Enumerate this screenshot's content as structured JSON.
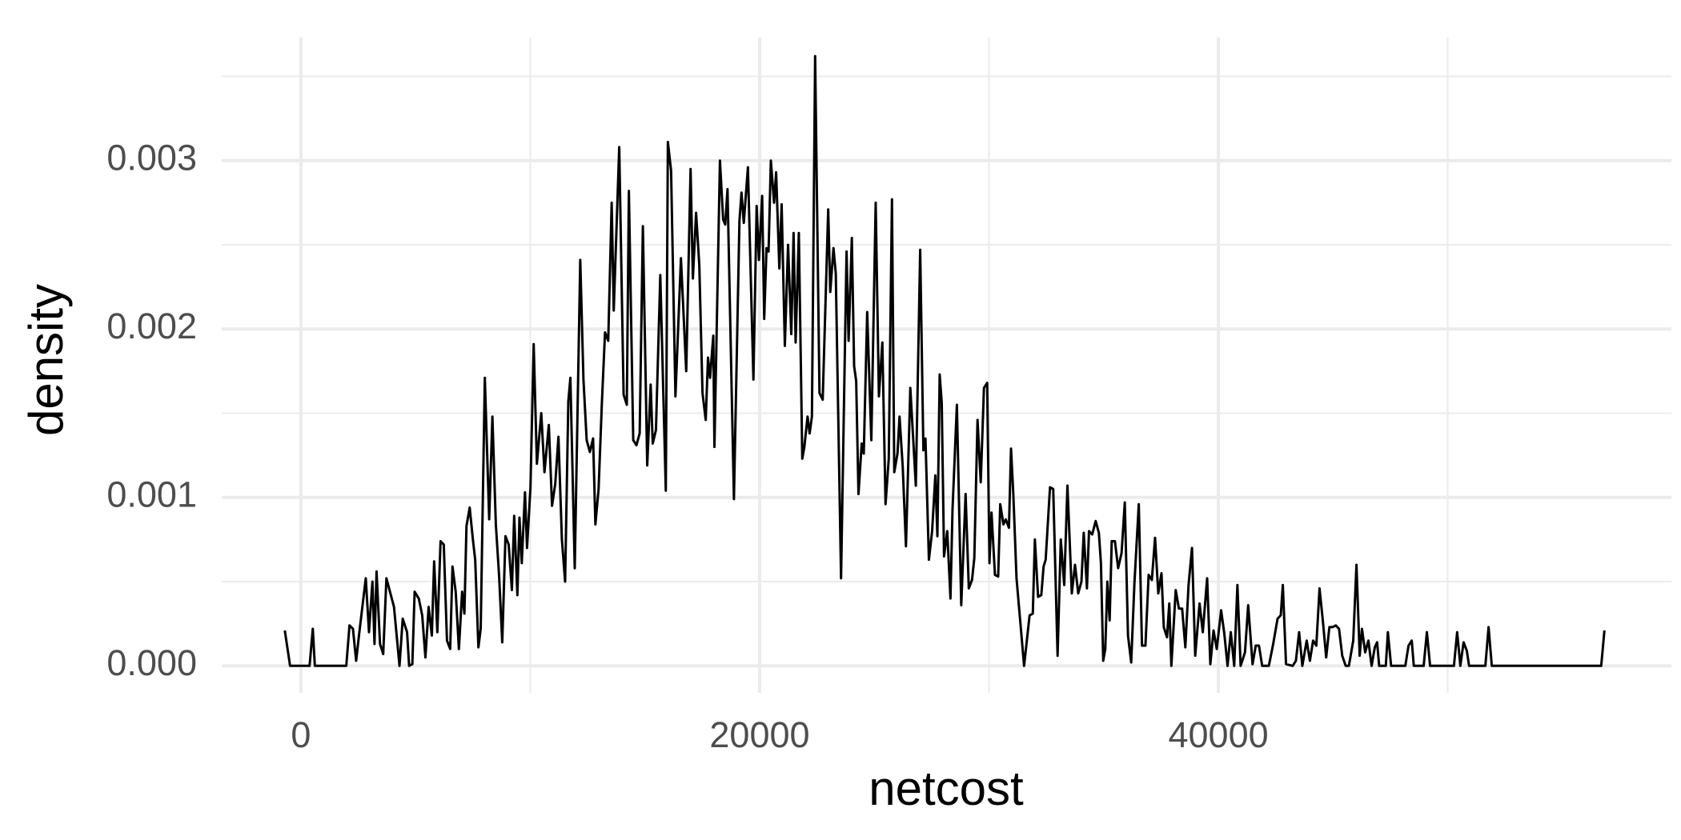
{
  "chart_data": {
    "type": "line",
    "x_label": "netcost",
    "y_label": "density",
    "x": [
      -700,
      -470,
      380,
      520,
      610,
      1980,
      2120,
      2270,
      2410,
      2550,
      2830,
      2970,
      3120,
      3210,
      3300,
      3450,
      3590,
      3730,
      4060,
      4300,
      4440,
      4630,
      4720,
      4860,
      4960,
      5140,
      5290,
      5430,
      5570,
      5710,
      5810,
      5950,
      6090,
      6230,
      6370,
      6510,
      6610,
      6750,
      6890,
      7030,
      7130,
      7220,
      7360,
      7500,
      7600,
      7740,
      7840,
      8020,
      8210,
      8350,
      8500,
      8640,
      8780,
      8920,
      9060,
      9200,
      9300,
      9440,
      9530,
      9630,
      9770,
      9860,
      10010,
      10150,
      10290,
      10480,
      10620,
      10810,
      10950,
      11090,
      11230,
      11380,
      11520,
      11660,
      11750,
      11940,
      12180,
      12320,
      12460,
      12600,
      12740,
      12840,
      12980,
      13120,
      13260,
      13400,
      13550,
      13640,
      13880,
      14070,
      14210,
      14300,
      14490,
      14630,
      14770,
      14910,
      15100,
      15250,
      15340,
      15480,
      15670,
      15910,
      16000,
      16140,
      16330,
      16570,
      16800,
      16990,
      17090,
      17230,
      17370,
      17510,
      17650,
      17750,
      17840,
      17980,
      18030,
      18270,
      18410,
      18500,
      18600,
      18880,
      19120,
      19210,
      19310,
      19490,
      19730,
      19870,
      19970,
      20110,
      20200,
      20300,
      20390,
      20490,
      20630,
      20720,
      20860,
      20960,
      21100,
      21240,
      21380,
      21480,
      21570,
      21710,
      21860,
      21950,
      22090,
      22180,
      22280,
      22420,
      22610,
      22750,
      22990,
      23080,
      23220,
      23320,
      23550,
      23790,
      23880,
      24020,
      24120,
      24210,
      24310,
      24450,
      24540,
      24690,
      24870,
      25060,
      25200,
      25350,
      25490,
      25630,
      25770,
      25870,
      26010,
      26100,
      26240,
      26380,
      26570,
      26810,
      27000,
      27140,
      27230,
      27380,
      27520,
      27660,
      27750,
      27850,
      27940,
      28040,
      28180,
      28320,
      28410,
      28600,
      28790,
      28980,
      29120,
      29260,
      29360,
      29500,
      29640,
      29780,
      29920,
      30020,
      30110,
      30260,
      30400,
      30490,
      30630,
      30730,
      30870,
      30960,
      31060,
      31200,
      31530,
      31770,
      31910,
      32000,
      32140,
      32280,
      32380,
      32470,
      32660,
      32800,
      32990,
      33130,
      33280,
      33420,
      33610,
      33750,
      33890,
      34030,
      34130,
      34270,
      34360,
      34500,
      34650,
      34790,
      34880,
      34980,
      35070,
      35160,
      35260,
      35350,
      35490,
      35630,
      35780,
      35920,
      36060,
      36200,
      36340,
      36530,
      36670,
      36820,
      36960,
      37100,
      37240,
      37380,
      37520,
      37620,
      37760,
      37860,
      37950,
      38140,
      38280,
      38420,
      38560,
      38700,
      38850,
      38990,
      39180,
      39320,
      39510,
      39650,
      39790,
      39930,
      40120,
      40260,
      40400,
      40540,
      40690,
      40830,
      40970,
      41160,
      41300,
      41490,
      41630,
      41770,
      41910,
      42200,
      42390,
      42580,
      42720,
      42810,
      42950,
      43240,
      43380,
      43520,
      43660,
      43850,
      43990,
      44130,
      44270,
      44410,
      44560,
      44700,
      44840,
      44980,
      45120,
      45260,
      45400,
      45550,
      45690,
      45880,
      46020,
      46160,
      46260,
      46400,
      46540,
      46680,
      46820,
      46920,
      47010,
      47300,
      47390,
      47530,
      48150,
      48290,
      48430,
      48520,
      48950,
      49090,
      49230,
      50270,
      50410,
      50550,
      50690,
      50830,
      50930,
      51640,
      51780,
      51920,
      56690,
      56830
    ],
    "values": [
      0.00021,
      0,
      0,
      0.00022,
      0,
      0,
      0.00024,
      0.00022,
      3e-05,
      0.0002,
      0.00052,
      0.0002,
      0.0005,
      0.00013,
      0.00056,
      0.00013,
      7e-05,
      0.00052,
      0.00035,
      0,
      0.00028,
      0.0002,
      0,
      1e-05,
      0.00044,
      0.0004,
      0.0003,
      5e-05,
      0.00035,
      0.00018,
      0.00062,
      0.0002,
      0.00074,
      0.00072,
      0.00015,
      0.0001,
      0.00059,
      0.00044,
      0.0001,
      0.00044,
      0.00031,
      0.00083,
      0.00094,
      0.00075,
      0.00063,
      0.00011,
      0.00022,
      0.00171,
      0.00087,
      0.00148,
      0.00084,
      0.00054,
      0.00014,
      0.00077,
      0.00072,
      0.00045,
      0.00089,
      0.00042,
      0.00088,
      0.00061,
      0.00103,
      0.0007,
      0.00106,
      0.00191,
      0.0012,
      0.0015,
      0.00115,
      0.00143,
      0.00095,
      0.00108,
      0.00136,
      0.00075,
      0.0005,
      0.00157,
      0.00171,
      0.00058,
      0.00241,
      0.0017,
      0.00134,
      0.00127,
      0.00135,
      0.00084,
      0.00105,
      0.00155,
      0.00198,
      0.00193,
      0.00275,
      0.00211,
      0.00308,
      0.00161,
      0.00155,
      0.00282,
      0.00134,
      0.00131,
      0.00138,
      0.00261,
      0.00119,
      0.00167,
      0.00132,
      0.0014,
      0.00232,
      0.00104,
      0.00311,
      0.00294,
      0.0016,
      0.00242,
      0.00175,
      0.00295,
      0.0023,
      0.00269,
      0.00238,
      0.00162,
      0.00146,
      0.00183,
      0.00171,
      0.00196,
      0.0013,
      0.003,
      0.00265,
      0.00262,
      0.00283,
      0.00099,
      0.00264,
      0.00281,
      0.00263,
      0.00296,
      0.0017,
      0.00273,
      0.00241,
      0.00279,
      0.00206,
      0.00248,
      0.00246,
      0.003,
      0.00275,
      0.00293,
      0.00236,
      0.00274,
      0.0019,
      0.0025,
      0.00197,
      0.00257,
      0.00192,
      0.00257,
      0.00123,
      0.0013,
      0.00148,
      0.00138,
      0.00148,
      0.00362,
      0.00162,
      0.00158,
      0.00271,
      0.00222,
      0.00248,
      0.00233,
      0.00052,
      0.00246,
      0.00193,
      0.00254,
      0.00178,
      0.00169,
      0.00102,
      0.00132,
      0.00126,
      0.0021,
      0.00134,
      0.00275,
      0.0016,
      0.00192,
      0.00096,
      0.00123,
      0.00277,
      0.00115,
      0.00126,
      0.00148,
      0.00118,
      0.00071,
      0.00165,
      0.00107,
      0.00247,
      0.00128,
      0.00135,
      0.00063,
      0.0008,
      0.00113,
      0.00077,
      0.00173,
      0.00156,
      0.00065,
      0.0008,
      0.0004,
      0.00093,
      0.00155,
      0.00036,
      0.00102,
      0.00046,
      0.00051,
      0.00064,
      0.00146,
      0.00109,
      0.00165,
      0.00168,
      0.00061,
      0.00091,
      0.00054,
      0.00053,
      0.00096,
      0.00084,
      0.00087,
      0.00082,
      0.00129,
      0.00102,
      0.00052,
      0,
      0.0003,
      0.00031,
      0.00075,
      0.00041,
      0.00042,
      0.00059,
      0.00063,
      0.00106,
      0.00105,
      6e-05,
      0.00075,
      0.00048,
      0.00107,
      0.00043,
      0.0006,
      0.00043,
      0.0005,
      0.00079,
      0.00046,
      0.0008,
      0.00078,
      0.00086,
      0.00079,
      0.00061,
      3e-05,
      0.0001,
      0.0005,
      0.00027,
      0.00074,
      0.00074,
      0.00058,
      0.00067,
      0.00097,
      0.00018,
      2e-05,
      0.00049,
      0.00096,
      0.00012,
      0.00012,
      0.00054,
      0.00051,
      0.00076,
      0.00043,
      0.00055,
      0.00023,
      0.00017,
      0.00037,
      0,
      0.00045,
      0.00034,
      0.00034,
      0.00011,
      0.00048,
      0.0007,
      6e-05,
      0.00037,
      0.0002,
      0.00052,
      1e-05,
      0.00021,
      0.0001,
      0.00033,
      0.00019,
      0,
      0.0002,
      0,
      0.00048,
      0,
      8e-05,
      0.00036,
      1e-05,
      0.00012,
      0.00012,
      0,
      0,
      0.00013,
      0.00028,
      0.0003,
      0.00048,
      1e-05,
      0,
      3e-05,
      0.0002,
      0,
      0.00015,
      3e-05,
      0.00015,
      0.00012,
      0.00046,
      0.00026,
      5e-05,
      0.00023,
      0.00023,
      0.00024,
      0.00022,
      6e-05,
      0,
      0,
      0.00015,
      0.0006,
      6e-05,
      0.00022,
      8e-05,
      0.00015,
      0,
      0.00011,
      0.00014,
      0,
      0,
      0.0002,
      0,
      0,
      0.00012,
      0.00015,
      0,
      0,
      0.0002,
      0,
      0,
      0.0002,
      0,
      0.00014,
      9e-05,
      0,
      0,
      0.00023,
      0,
      0,
      0.00021
    ],
    "color": "#000000",
    "xlim": [
      -3450,
      59750
    ],
    "ylim": [
      -0.00016,
      0.00373
    ],
    "xticks": [
      0,
      20000,
      40000
    ],
    "yticks": [
      {
        "value": 0,
        "label": "0.000"
      },
      0.001,
      0.002,
      0.003
    ],
    "x_minor_grid": [
      10000,
      30000,
      50000
    ],
    "y_minor_grid": [
      0.0005,
      0.0015,
      0.0025,
      0.0035
    ],
    "grid": true
  }
}
